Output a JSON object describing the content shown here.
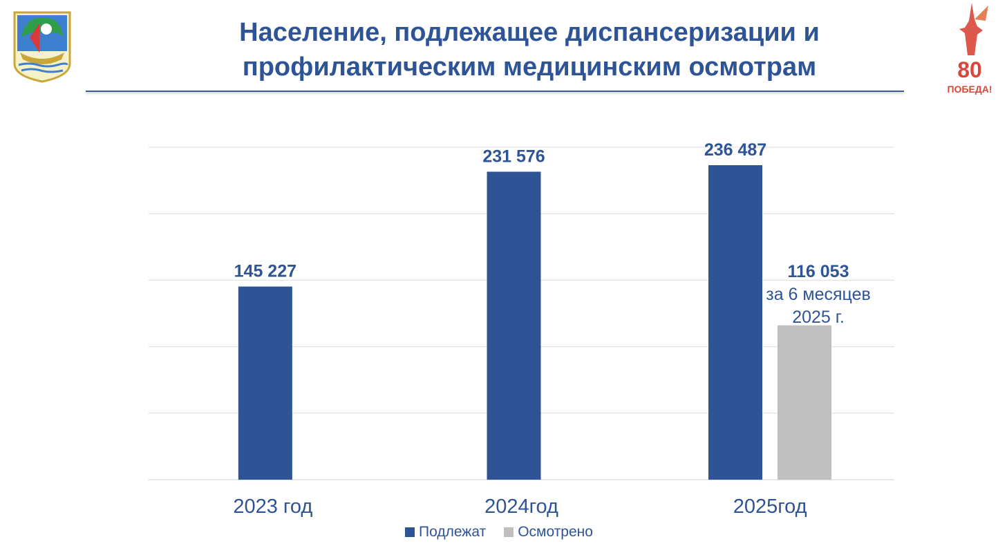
{
  "header": {
    "title_line1": "Население, подлежащее диспансеризации и",
    "title_line2": "профилактическим медицинским осмотрам"
  },
  "logos": {
    "left": "coat-of-arms-icon",
    "right": "victory-80-icon",
    "right_text_top": "80",
    "right_text_bottom": "ПОБЕДА!"
  },
  "chart_data": {
    "type": "bar",
    "categories": [
      "2023 год",
      "2024год",
      "2025год"
    ],
    "series": [
      {
        "name": "Подлежат",
        "color": "#2f5496",
        "values": [
          145227,
          231576,
          236487
        ],
        "labels": [
          "145 227",
          "231 576",
          "236 487"
        ]
      },
      {
        "name": "Осмотрено",
        "color": "#bfbfbf",
        "values": [
          null,
          null,
          116053
        ],
        "labels": [
          null,
          null,
          "116 053"
        ]
      }
    ],
    "annotation": {
      "line1": "за 6 месяцев",
      "line2": "2025 г."
    },
    "ylim": [
      0,
      250000
    ],
    "grid": true,
    "legend": "bottom"
  }
}
